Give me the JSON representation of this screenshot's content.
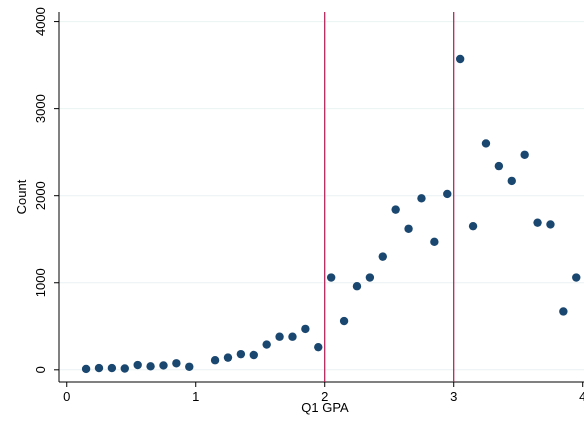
{
  "chart_data": {
    "type": "scatter",
    "x_label": "Q1 GPA",
    "y_label": "Count",
    "series": [
      {
        "color": "#1a476f",
        "x": [
          0.15,
          0.25,
          0.35,
          0.45,
          0.55,
          0.65,
          0.75,
          0.85,
          0.95,
          1.15,
          1.25,
          1.35,
          1.45,
          1.55,
          1.65,
          1.75,
          1.85,
          1.95,
          2.05,
          2.15,
          2.25,
          2.35,
          2.45,
          2.55,
          2.65,
          2.75,
          2.85,
          2.95,
          3.05,
          3.15,
          3.25,
          3.35,
          3.45,
          3.55,
          3.65,
          3.75,
          3.85,
          3.95
        ],
        "values": [
          10,
          20,
          20,
          15,
          55,
          40,
          50,
          75,
          35,
          110,
          140,
          180,
          170,
          290,
          380,
          380,
          470,
          260,
          1060,
          560,
          960,
          1060,
          1300,
          1840,
          1620,
          1970,
          1470,
          2020,
          3570,
          1650,
          2600,
          2340,
          2170,
          2470,
          1690,
          1670,
          670,
          1060
        ]
      }
    ],
    "xlim": [
      -0.06,
      4.01
    ],
    "ylim": [
      -140,
      4110
    ],
    "xticks": [
      0,
      1,
      2,
      3,
      4
    ],
    "yticks": [
      0,
      1000,
      2000,
      3000,
      4000
    ],
    "grid": true,
    "reference_lines": {
      "x": [
        2,
        3
      ],
      "color": "#b0164c"
    }
  }
}
